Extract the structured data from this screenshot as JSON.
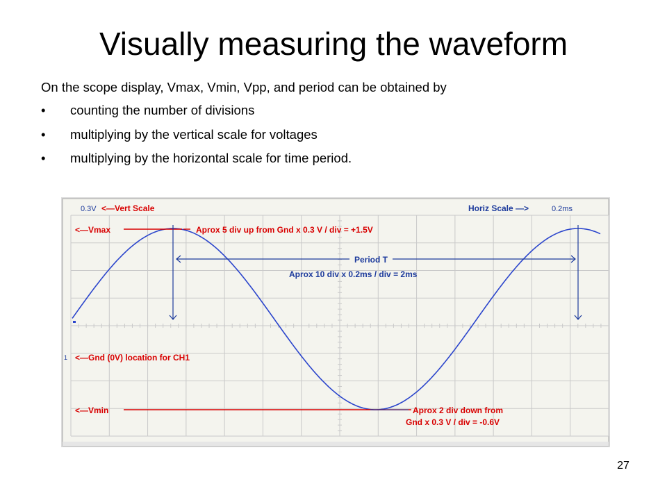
{
  "slide": {
    "title": "Visually measuring the waveform",
    "intro": "On the scope display, Vmax, Vmin, Vpp, and period can be obtained by",
    "bullet_glyph": "•",
    "bullets": [
      "counting the number of divisions",
      "multiplying by the vertical scale for voltages",
      "multiplying by the horizontal scale for time period."
    ],
    "page_number": "27"
  },
  "scope": {
    "vert_scale_value": "0.3V",
    "vert_scale_label": "<—Vert Scale",
    "horiz_scale_label": "Horiz Scale —>",
    "horiz_scale_value": "0.2ms",
    "vmax_label": "<—Vmax",
    "vmax_note": "Aprox 5 div up from Gnd x 0.3 V / div = +1.5V",
    "period_label": "Period T",
    "period_note": "Aprox 10 div x 0.2ms / div = 2ms",
    "gnd_marker": "1",
    "gnd_label": "<—Gnd (0V) location for CH1",
    "vmin_label": "<—Vmin",
    "vmin_note_line1": "Aprox 2 div down from",
    "vmin_note_line2": "Gnd x 0.3 V / div = -0.6V",
    "colors": {
      "trace": "#2b45cc",
      "annotation_red": "#d80000",
      "annotation_blue": "#1c3a9c",
      "grid": "#c9c9c9",
      "screen_bg": "#f4f4ee",
      "frame": "#a8a8a8"
    }
  }
}
